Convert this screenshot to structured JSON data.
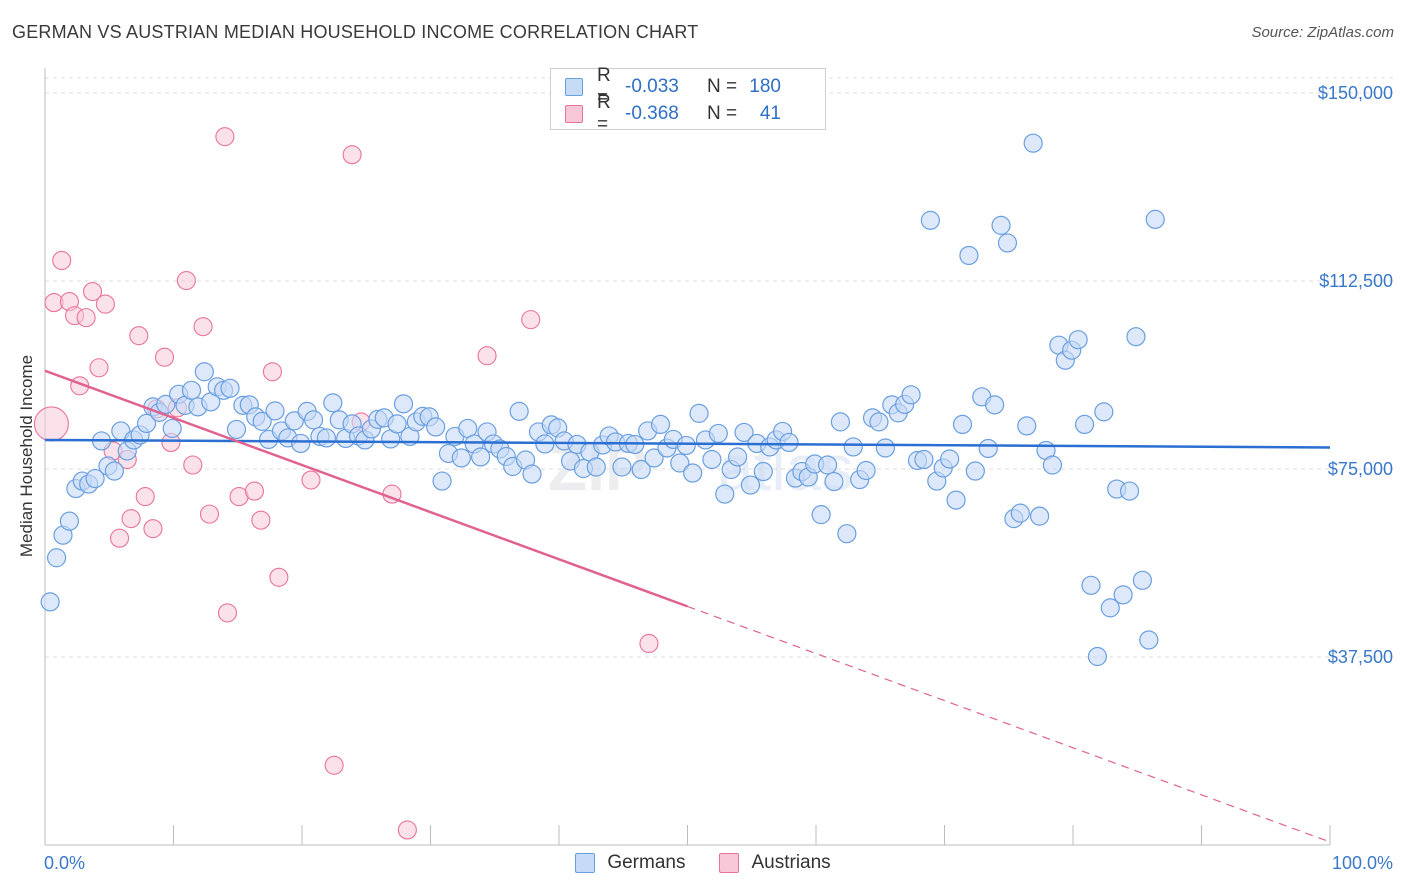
{
  "title": "GERMAN VS AUSTRIAN MEDIAN HOUSEHOLD INCOME CORRELATION CHART",
  "source": "Source: ZipAtlas.com",
  "colors": {
    "german": "#6a9fe0",
    "german_fill": "#c6dbf6",
    "austrian": "#e8739b",
    "austrian_fill": "#f8c8d8",
    "axis_text": "#3a78c9"
  },
  "legend": {
    "rows": [
      {
        "r_label": "R =",
        "r_value": "-0.033",
        "n_label": "N =",
        "n_value": "180"
      },
      {
        "r_label": "R =",
        "r_value": "-0.368",
        "n_label": "N =",
        "n_value": "41"
      }
    ],
    "bottom": [
      {
        "label": "Germans"
      },
      {
        "label": "Austrians"
      }
    ]
  },
  "watermark": "ZIPatlas",
  "chart_data": {
    "type": "scatter",
    "title": "GERMAN VS AUSTRIAN MEDIAN HOUSEHOLD INCOME CORRELATION CHART",
    "xlabel": "",
    "ylabel": "Median Household Income",
    "xlim": [
      0,
      100
    ],
    "ylim": [
      0,
      153000
    ],
    "x_tick_labels": [
      "0.0%",
      "100.0%"
    ],
    "y_ticks": [
      37500,
      75000,
      112500,
      150000
    ],
    "y_tick_labels": [
      "$37,500",
      "$75,000",
      "$112,500",
      "$150,000"
    ],
    "grid": "horizontal dashed",
    "legend_position": "top-center",
    "series": [
      {
        "name": "Germans",
        "r": -0.033,
        "n": 180,
        "trend": {
          "x": [
            0,
            100
          ],
          "y": [
            80800,
            79300
          ]
        },
        "points": [
          [
            0.4,
            48500
          ],
          [
            0.9,
            57300
          ],
          [
            1.4,
            61800
          ],
          [
            1.9,
            64600
          ],
          [
            2.4,
            71100
          ],
          [
            2.9,
            72600
          ],
          [
            3.4,
            72000
          ],
          [
            3.9,
            73100
          ],
          [
            4.4,
            80600
          ],
          [
            4.9,
            75600
          ],
          [
            5.4,
            74600
          ],
          [
            5.9,
            82600
          ],
          [
            6.4,
            78600
          ],
          [
            6.9,
            80800
          ],
          [
            7.4,
            81800
          ],
          [
            7.9,
            84100
          ],
          [
            8.4,
            87400
          ],
          [
            8.9,
            86300
          ],
          [
            9.4,
            87900
          ],
          [
            9.9,
            83100
          ],
          [
            10.4,
            89900
          ],
          [
            10.9,
            87700
          ],
          [
            11.4,
            90700
          ],
          [
            11.9,
            87400
          ],
          [
            12.4,
            94400
          ],
          [
            12.9,
            88400
          ],
          [
            13.4,
            91400
          ],
          [
            13.9,
            90700
          ],
          [
            14.4,
            91100
          ],
          [
            14.9,
            82900
          ],
          [
            15.4,
            87700
          ],
          [
            15.9,
            87800
          ],
          [
            16.4,
            85400
          ],
          [
            16.9,
            84500
          ],
          [
            17.4,
            80900
          ],
          [
            17.9,
            86600
          ],
          [
            18.4,
            82600
          ],
          [
            18.9,
            81200
          ],
          [
            19.4,
            84600
          ],
          [
            19.9,
            80100
          ],
          [
            20.4,
            86500
          ],
          [
            20.9,
            84800
          ],
          [
            21.4,
            81500
          ],
          [
            21.9,
            81200
          ],
          [
            22.4,
            88200
          ],
          [
            22.9,
            84800
          ],
          [
            23.4,
            81100
          ],
          [
            23.9,
            84000
          ],
          [
            24.4,
            81600
          ],
          [
            24.9,
            80800
          ],
          [
            25.4,
            83000
          ],
          [
            25.9,
            84900
          ],
          [
            26.4,
            85200
          ],
          [
            26.9,
            81000
          ],
          [
            27.4,
            84000
          ],
          [
            27.9,
            88000
          ],
          [
            28.4,
            81500
          ],
          [
            28.9,
            84400
          ],
          [
            29.4,
            85500
          ],
          [
            29.9,
            85400
          ],
          [
            30.4,
            83400
          ],
          [
            30.9,
            72600
          ],
          [
            31.4,
            78100
          ],
          [
            31.9,
            81500
          ],
          [
            32.4,
            77200
          ],
          [
            32.9,
            83100
          ],
          [
            33.4,
            80000
          ],
          [
            33.9,
            77400
          ],
          [
            34.4,
            82400
          ],
          [
            34.9,
            80000
          ],
          [
            35.4,
            79000
          ],
          [
            35.9,
            77500
          ],
          [
            36.4,
            75500
          ],
          [
            36.9,
            86500
          ],
          [
            37.4,
            76800
          ],
          [
            37.9,
            74000
          ],
          [
            38.4,
            82400
          ],
          [
            38.9,
            80000
          ],
          [
            39.4,
            83800
          ],
          [
            39.9,
            83200
          ],
          [
            40.4,
            80600
          ],
          [
            40.9,
            76600
          ],
          [
            41.4,
            79900
          ],
          [
            41.9,
            75100
          ],
          [
            42.4,
            78400
          ],
          [
            42.9,
            75400
          ],
          [
            43.4,
            79800
          ],
          [
            43.9,
            81600
          ],
          [
            44.4,
            80400
          ],
          [
            44.9,
            75400
          ],
          [
            45.4,
            80100
          ],
          [
            45.9,
            79900
          ],
          [
            46.4,
            74900
          ],
          [
            46.9,
            82600
          ],
          [
            47.4,
            77200
          ],
          [
            47.9,
            83900
          ],
          [
            48.4,
            79200
          ],
          [
            48.9,
            80900
          ],
          [
            49.4,
            76200
          ],
          [
            49.9,
            79700
          ],
          [
            50.4,
            74200
          ],
          [
            50.9,
            86100
          ],
          [
            51.4,
            80800
          ],
          [
            51.9,
            76900
          ],
          [
            52.4,
            82100
          ],
          [
            52.9,
            70000
          ],
          [
            53.4,
            74900
          ],
          [
            53.9,
            77400
          ],
          [
            54.4,
            82300
          ],
          [
            54.9,
            71800
          ],
          [
            55.4,
            80100
          ],
          [
            55.9,
            74500
          ],
          [
            56.4,
            79400
          ],
          [
            56.9,
            80800
          ],
          [
            57.4,
            82500
          ],
          [
            57.9,
            80300
          ],
          [
            58.4,
            73200
          ],
          [
            58.9,
            74500
          ],
          [
            59.4,
            73400
          ],
          [
            59.9,
            76000
          ],
          [
            60.4,
            65900
          ],
          [
            60.9,
            75800
          ],
          [
            61.4,
            72500
          ],
          [
            61.9,
            84400
          ],
          [
            62.4,
            62100
          ],
          [
            62.9,
            79400
          ],
          [
            63.4,
            72900
          ],
          [
            63.9,
            74700
          ],
          [
            64.4,
            85200
          ],
          [
            64.9,
            84400
          ],
          [
            65.4,
            79200
          ],
          [
            65.9,
            87800
          ],
          [
            66.4,
            86200
          ],
          [
            66.9,
            87900
          ],
          [
            67.4,
            89800
          ],
          [
            67.9,
            76700
          ],
          [
            68.4,
            76900
          ],
          [
            68.9,
            124600
          ],
          [
            69.4,
            72600
          ],
          [
            69.9,
            75200
          ],
          [
            70.4,
            77000
          ],
          [
            70.9,
            68800
          ],
          [
            71.4,
            83900
          ],
          [
            71.9,
            117600
          ],
          [
            72.4,
            74600
          ],
          [
            72.9,
            89400
          ],
          [
            73.4,
            79100
          ],
          [
            73.9,
            87800
          ],
          [
            74.4,
            123600
          ],
          [
            74.9,
            120100
          ],
          [
            75.4,
            65100
          ],
          [
            75.9,
            66200
          ],
          [
            76.4,
            83600
          ],
          [
            76.9,
            140000
          ],
          [
            77.4,
            65600
          ],
          [
            77.9,
            78700
          ],
          [
            78.4,
            75800
          ],
          [
            78.9,
            99700
          ],
          [
            79.4,
            96700
          ],
          [
            79.9,
            98700
          ],
          [
            80.4,
            100800
          ],
          [
            80.9,
            83900
          ],
          [
            81.4,
            51800
          ],
          [
            81.9,
            37600
          ],
          [
            82.4,
            86400
          ],
          [
            82.9,
            47300
          ],
          [
            83.4,
            71000
          ],
          [
            83.9,
            49900
          ],
          [
            84.4,
            70600
          ],
          [
            84.9,
            101400
          ],
          [
            85.4,
            52800
          ],
          [
            85.9,
            40900
          ],
          [
            86.4,
            124800
          ]
        ]
      },
      {
        "name": "Austrians",
        "r": -0.368,
        "n": 41,
        "trend": {
          "x": [
            0,
            50
          ],
          "y": [
            94600,
            47600
          ]
        },
        "trend_dashed": {
          "x": [
            50,
            100
          ],
          "y": [
            47600,
            600
          ]
        },
        "points": [
          [
            0.5,
            84000
          ],
          [
            0.7,
            108200
          ],
          [
            1.3,
            116600
          ],
          [
            1.9,
            108400
          ],
          [
            2.3,
            105600
          ],
          [
            2.7,
            91600
          ],
          [
            3.2,
            105200
          ],
          [
            3.7,
            110400
          ],
          [
            4.2,
            95200
          ],
          [
            4.7,
            107900
          ],
          [
            5.3,
            78600
          ],
          [
            5.8,
            61200
          ],
          [
            6.4,
            76900
          ],
          [
            6.7,
            65100
          ],
          [
            7.3,
            101600
          ],
          [
            7.8,
            69500
          ],
          [
            8.4,
            63100
          ],
          [
            8.7,
            87000
          ],
          [
            9.3,
            97300
          ],
          [
            9.8,
            80300
          ],
          [
            10.3,
            87200
          ],
          [
            11.0,
            112600
          ],
          [
            11.5,
            75800
          ],
          [
            12.3,
            103400
          ],
          [
            12.8,
            66000
          ],
          [
            14.0,
            141300
          ],
          [
            14.2,
            46300
          ],
          [
            15.1,
            69500
          ],
          [
            16.3,
            70600
          ],
          [
            16.8,
            64800
          ],
          [
            17.7,
            94400
          ],
          [
            18.2,
            53400
          ],
          [
            20.7,
            72800
          ],
          [
            22.5,
            15900
          ],
          [
            23.9,
            137700
          ],
          [
            24.6,
            84400
          ],
          [
            27.0,
            70000
          ],
          [
            28.2,
            3000
          ],
          [
            34.4,
            97600
          ],
          [
            37.8,
            104800
          ],
          [
            47.0,
            40200
          ]
        ]
      }
    ]
  }
}
